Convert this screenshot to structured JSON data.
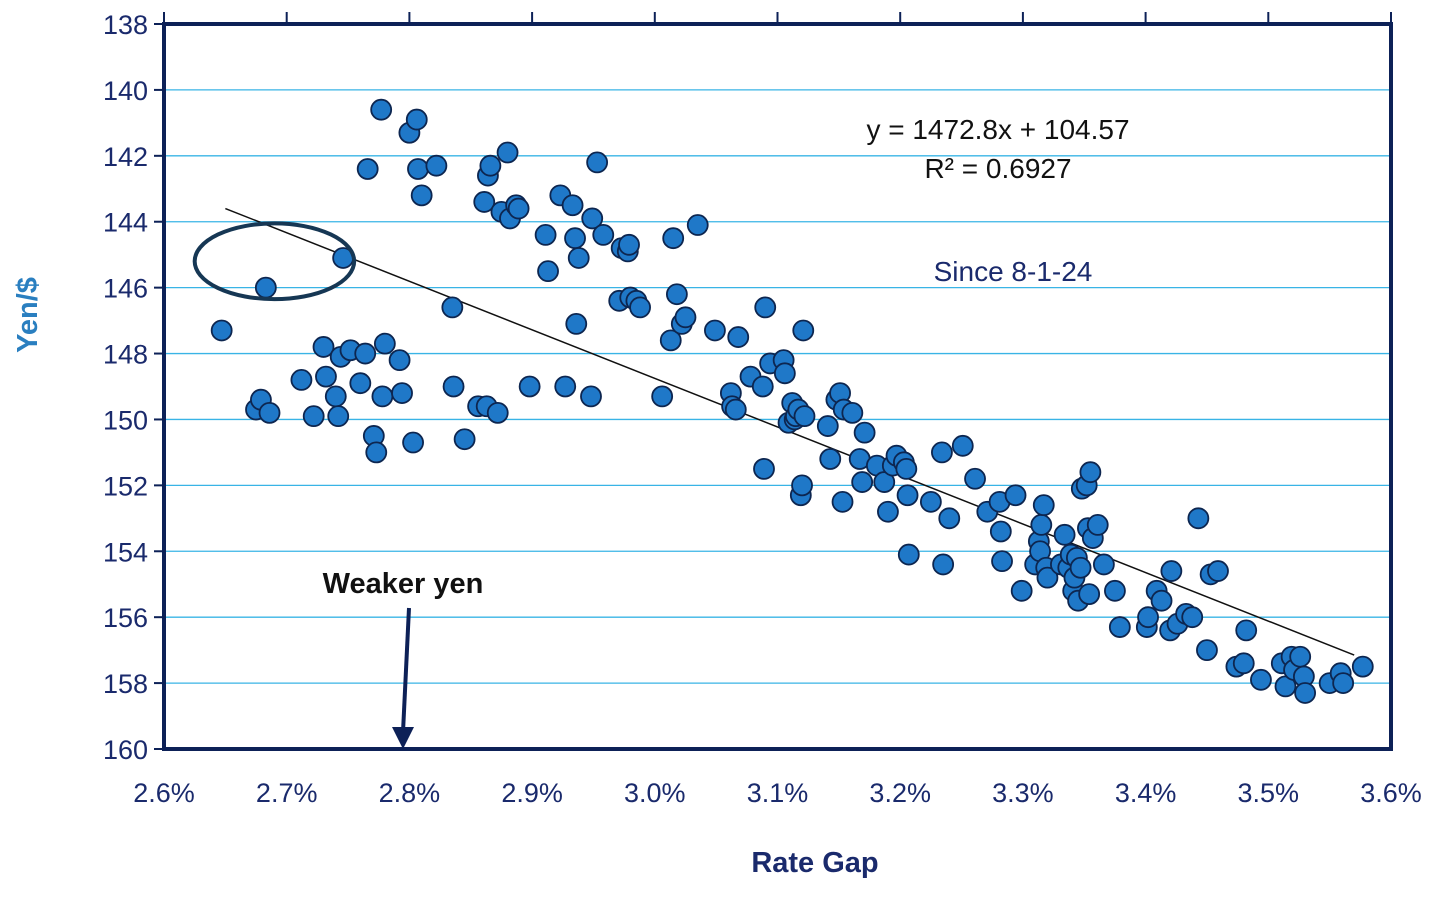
{
  "chart_data": {
    "type": "scatter",
    "title": "",
    "xlabel": "Rate Gap",
    "ylabel": "Yen/$",
    "xlim": [
      0.026,
      0.036
    ],
    "ylim": [
      138,
      160
    ],
    "y_inverted": true,
    "grid": "horizontal",
    "xticks": [
      "2.6%",
      "2.7%",
      "2.8%",
      "2.9%",
      "3.0%",
      "3.1%",
      "3.2%",
      "3.3%",
      "3.4%",
      "3.5%",
      "3.6%"
    ],
    "yticks": [
      "138",
      "140",
      "142",
      "144",
      "146",
      "148",
      "150",
      "152",
      "154",
      "156",
      "158",
      "160"
    ],
    "trendline": {
      "slope": 1472.8,
      "intercept": 104.57,
      "x_range": [
        0.0265,
        0.0357
      ]
    },
    "equation": "y = 1472.8x + 104.57",
    "r_squared": "R² = 0.6927",
    "period_note": "Since 8-1-24",
    "arrow_label": "Weaker yen",
    "arrow_x": 0.028,
    "highlight_ellipse": {
      "cx": 0.0269,
      "cy": 145.2,
      "rx": 0.00065,
      "ry": 1.15
    },
    "colors": {
      "axis_text": "#1a2a6c",
      "ylabel": "#2a7fc0",
      "point_fill": "#1f78c8",
      "point_stroke": "#0d2650",
      "grid": "#39b4e6",
      "frame": "#0d2157",
      "trendline": "#111111",
      "ellipse": "#163754"
    },
    "points": [
      [
        0.02647,
        147.3
      ],
      [
        0.02675,
        149.7
      ],
      [
        0.02679,
        149.4
      ],
      [
        0.02683,
        146.0
      ],
      [
        0.02686,
        149.8
      ],
      [
        0.02712,
        148.8
      ],
      [
        0.02722,
        149.9
      ],
      [
        0.0273,
        147.8
      ],
      [
        0.02732,
        148.7
      ],
      [
        0.0274,
        149.3
      ],
      [
        0.02742,
        149.9
      ],
      [
        0.02744,
        148.1
      ],
      [
        0.02746,
        145.1
      ],
      [
        0.02752,
        147.9
      ],
      [
        0.0276,
        148.9
      ],
      [
        0.02764,
        148.0
      ],
      [
        0.02766,
        142.4
      ],
      [
        0.02771,
        150.5
      ],
      [
        0.02773,
        151.0
      ],
      [
        0.02777,
        140.6
      ],
      [
        0.02778,
        149.3
      ],
      [
        0.0278,
        147.7
      ],
      [
        0.02792,
        148.2
      ],
      [
        0.02794,
        149.2
      ],
      [
        0.028,
        141.3
      ],
      [
        0.02803,
        150.7
      ],
      [
        0.02806,
        140.9
      ],
      [
        0.02807,
        142.4
      ],
      [
        0.0281,
        143.2
      ],
      [
        0.02822,
        142.3
      ],
      [
        0.02835,
        146.6
      ],
      [
        0.02836,
        149.0
      ],
      [
        0.02845,
        150.6
      ],
      [
        0.02856,
        149.6
      ],
      [
        0.02861,
        143.4
      ],
      [
        0.02863,
        149.6
      ],
      [
        0.02864,
        142.6
      ],
      [
        0.02866,
        142.3
      ],
      [
        0.02872,
        149.8
      ],
      [
        0.02875,
        143.7
      ],
      [
        0.0288,
        141.9
      ],
      [
        0.02882,
        143.9
      ],
      [
        0.02887,
        143.5
      ],
      [
        0.02889,
        143.6
      ],
      [
        0.02898,
        149.0
      ],
      [
        0.02911,
        144.4
      ],
      [
        0.02913,
        145.5
      ],
      [
        0.02923,
        143.2
      ],
      [
        0.02927,
        149.0
      ],
      [
        0.02933,
        143.5
      ],
      [
        0.02935,
        144.5
      ],
      [
        0.02936,
        147.1
      ],
      [
        0.02938,
        145.1
      ],
      [
        0.02948,
        149.3
      ],
      [
        0.02949,
        143.9
      ],
      [
        0.02953,
        142.2
      ],
      [
        0.02958,
        144.4
      ],
      [
        0.02971,
        146.4
      ],
      [
        0.02973,
        144.8
      ],
      [
        0.02978,
        144.9
      ],
      [
        0.0298,
        146.3
      ],
      [
        0.02985,
        146.4
      ],
      [
        0.02988,
        146.6
      ],
      [
        0.02979,
        144.7
      ],
      [
        0.03006,
        149.3
      ],
      [
        0.03013,
        147.6
      ],
      [
        0.03015,
        144.5
      ],
      [
        0.03018,
        146.2
      ],
      [
        0.03022,
        147.1
      ],
      [
        0.03025,
        146.9
      ],
      [
        0.03035,
        144.1
      ],
      [
        0.03049,
        147.3
      ],
      [
        0.03062,
        149.2
      ],
      [
        0.03063,
        149.6
      ],
      [
        0.03066,
        149.7
      ],
      [
        0.03068,
        147.5
      ],
      [
        0.03078,
        148.7
      ],
      [
        0.03088,
        149.0
      ],
      [
        0.03089,
        151.5
      ],
      [
        0.0309,
        146.6
      ],
      [
        0.03094,
        148.3
      ],
      [
        0.03105,
        148.2
      ],
      [
        0.03106,
        148.6
      ],
      [
        0.03109,
        150.1
      ],
      [
        0.03112,
        149.5
      ],
      [
        0.03114,
        150.0
      ],
      [
        0.03115,
        149.9
      ],
      [
        0.03117,
        149.7
      ],
      [
        0.03119,
        152.3
      ],
      [
        0.0312,
        152.0
      ],
      [
        0.03121,
        147.3
      ],
      [
        0.03122,
        149.9
      ],
      [
        0.03141,
        150.2
      ],
      [
        0.03143,
        151.2
      ],
      [
        0.03148,
        149.4
      ],
      [
        0.03151,
        149.2
      ],
      [
        0.03153,
        152.5
      ],
      [
        0.03154,
        149.7
      ],
      [
        0.03161,
        149.8
      ],
      [
        0.03167,
        151.2
      ],
      [
        0.03169,
        151.9
      ],
      [
        0.03171,
        150.4
      ],
      [
        0.03181,
        151.4
      ],
      [
        0.03187,
        151.9
      ],
      [
        0.0319,
        152.8
      ],
      [
        0.03194,
        151.4
      ],
      [
        0.03197,
        151.1
      ],
      [
        0.03203,
        151.3
      ],
      [
        0.03205,
        151.5
      ],
      [
        0.03206,
        152.3
      ],
      [
        0.03207,
        154.1
      ],
      [
        0.03225,
        152.5
      ],
      [
        0.03234,
        151.0
      ],
      [
        0.03235,
        154.4
      ],
      [
        0.0324,
        153.0
      ],
      [
        0.03251,
        150.8
      ],
      [
        0.03261,
        151.8
      ],
      [
        0.03271,
        152.8
      ],
      [
        0.03281,
        152.5
      ],
      [
        0.03282,
        153.4
      ],
      [
        0.03283,
        154.3
      ],
      [
        0.03294,
        152.3
      ],
      [
        0.03299,
        155.2
      ],
      [
        0.0331,
        154.4
      ],
      [
        0.03313,
        153.7
      ],
      [
        0.03314,
        154.0
      ],
      [
        0.03315,
        153.2
      ],
      [
        0.03317,
        152.6
      ],
      [
        0.03319,
        154.5
      ],
      [
        0.0332,
        154.8
      ],
      [
        0.03331,
        154.4
      ],
      [
        0.03334,
        153.5
      ],
      [
        0.03337,
        154.5
      ],
      [
        0.03339,
        154.1
      ],
      [
        0.03341,
        155.2
      ],
      [
        0.03342,
        154.8
      ],
      [
        0.03344,
        154.2
      ],
      [
        0.03345,
        155.5
      ],
      [
        0.03347,
        154.5
      ],
      [
        0.03348,
        152.1
      ],
      [
        0.03352,
        152.0
      ],
      [
        0.03353,
        153.3
      ],
      [
        0.03354,
        155.3
      ],
      [
        0.03355,
        151.6
      ],
      [
        0.03357,
        153.6
      ],
      [
        0.03361,
        153.2
      ],
      [
        0.03366,
        154.4
      ],
      [
        0.03375,
        155.2
      ],
      [
        0.03379,
        156.3
      ],
      [
        0.03401,
        156.3
      ],
      [
        0.03402,
        156.0
      ],
      [
        0.03409,
        155.2
      ],
      [
        0.03413,
        155.5
      ],
      [
        0.0342,
        156.4
      ],
      [
        0.03421,
        154.6
      ],
      [
        0.03426,
        156.2
      ],
      [
        0.03433,
        155.9
      ],
      [
        0.03438,
        156.0
      ],
      [
        0.03443,
        153.0
      ],
      [
        0.0345,
        157.0
      ],
      [
        0.03453,
        154.7
      ],
      [
        0.03459,
        154.6
      ],
      [
        0.03474,
        157.5
      ],
      [
        0.0348,
        157.4
      ],
      [
        0.03482,
        156.4
      ],
      [
        0.03494,
        157.9
      ],
      [
        0.03511,
        157.4
      ],
      [
        0.03514,
        158.1
      ],
      [
        0.03519,
        157.2
      ],
      [
        0.03521,
        157.6
      ],
      [
        0.03526,
        157.2
      ],
      [
        0.03529,
        157.8
      ],
      [
        0.0353,
        158.3
      ],
      [
        0.0355,
        158.0
      ],
      [
        0.03559,
        157.7
      ],
      [
        0.03561,
        158.0
      ],
      [
        0.03577,
        157.5
      ]
    ]
  }
}
